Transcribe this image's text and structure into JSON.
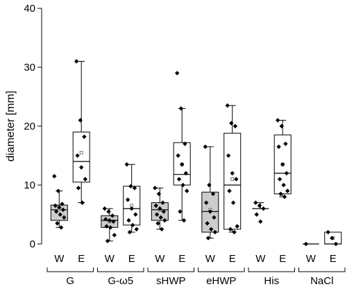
{
  "chart_data": {
    "type": "box",
    "title": "",
    "xlabel": "",
    "ylabel": "diameter [mm]",
    "ylim": [
      0,
      40
    ],
    "yticks": [
      0,
      10,
      20,
      30,
      40
    ],
    "grid": false,
    "groups": [
      {
        "name": "G",
        "boxes": [
          {
            "label": "W",
            "filled": true,
            "whisker_low": 2.8,
            "q1": 4.0,
            "median": 5.8,
            "q3": 6.6,
            "whisker_high": 9.0,
            "mean": 6.0,
            "points": [
              11.5,
              9.0,
              6.8,
              6.5,
              6.2,
              5.8,
              5.5,
              5.0,
              4.5,
              3.5,
              2.8
            ]
          },
          {
            "label": "E",
            "filled": false,
            "whisker_low": 7.0,
            "q1": 10.5,
            "median": 14.0,
            "q3": 19.0,
            "whisker_high": 31.0,
            "mean": 15.5,
            "points": [
              31.0,
              21.0,
              18.2,
              15.0,
              13.0,
              11.0,
              9.5,
              7.0
            ]
          }
        ]
      },
      {
        "name": "G-ω5",
        "boxes": [
          {
            "label": "W",
            "filled": true,
            "whisker_low": 0.5,
            "q1": 2.8,
            "median": 4.0,
            "q3": 4.8,
            "whisker_high": 6.0,
            "mean": 3.8,
            "points": [
              6.0,
              5.5,
              4.8,
              4.2,
              4.0,
              3.8,
              3.0,
              2.8,
              1.5,
              0.5
            ]
          },
          {
            "label": "E",
            "filled": false,
            "whisker_low": 2.0,
            "q1": 3.2,
            "median": 6.0,
            "q3": 9.8,
            "whisker_high": 13.5,
            "mean": 6.5,
            "points": [
              13.5,
              9.8,
              9.5,
              7.5,
              6.0,
              5.0,
              4.0,
              3.2,
              2.5,
              2.0
            ]
          }
        ]
      },
      {
        "name": "sHWP",
        "boxes": [
          {
            "label": "W",
            "filled": true,
            "whisker_low": 2.5,
            "q1": 4.0,
            "median": 5.8,
            "q3": 7.0,
            "whisker_high": 9.5,
            "mean": 5.8,
            "points": [
              9.5,
              8.5,
              7.0,
              6.5,
              6.0,
              5.5,
              5.0,
              4.5,
              4.0,
              3.5,
              2.5
            ]
          },
          {
            "label": "E",
            "filled": false,
            "whisker_low": 4.0,
            "q1": 10.0,
            "median": 11.8,
            "q3": 17.2,
            "whisker_high": 23.0,
            "mean": 13.5,
            "points": [
              29.0,
              23.0,
              17.0,
              15.0,
              13.5,
              12.0,
              11.0,
              10.0,
              9.0,
              5.5,
              4.0
            ]
          }
        ]
      },
      {
        "name": "eHWP",
        "boxes": [
          {
            "label": "W",
            "filled": true,
            "whisker_low": 1.0,
            "q1": 2.0,
            "median": 5.5,
            "q3": 8.8,
            "whisker_high": 16.5,
            "mean": 5.8,
            "points": [
              16.5,
              10.0,
              8.5,
              7.0,
              5.5,
              4.5,
              3.5,
              2.5,
              2.0,
              1.0
            ]
          },
          {
            "label": "E",
            "filled": false,
            "whisker_low": 2.0,
            "q1": 2.5,
            "median": 10.0,
            "q3": 18.8,
            "whisker_high": 23.5,
            "mean": 11.0,
            "points": [
              23.5,
              20.5,
              20.0,
              15.0,
              12.0,
              11.0,
              9.0,
              7.0,
              3.0,
              2.5,
              2.0
            ]
          }
        ]
      },
      {
        "name": "His",
        "boxes": [
          {
            "label": "W",
            "filled": false,
            "whisker_low": 6.0,
            "q1": 6.0,
            "median": 6.0,
            "q3": 6.0,
            "whisker_high": 7.0,
            "mean": 6.0,
            "points": [
              7.0,
              6.5,
              6.0,
              5.0,
              3.8
            ]
          },
          {
            "label": "E",
            "filled": false,
            "whisker_low": 8.0,
            "q1": 8.5,
            "median": 12.0,
            "q3": 18.5,
            "whisker_high": 21.0,
            "mean": 13.5,
            "points": [
              21.0,
              20.0,
              17.0,
              16.5,
              13.5,
              12.0,
              11.0,
              10.0,
              9.0,
              8.5,
              8.0
            ]
          }
        ]
      },
      {
        "name": "NaCl",
        "boxes": [
          {
            "label": "W",
            "filled": false,
            "whisker_low": 0.0,
            "q1": 0.0,
            "median": 0.0,
            "q3": 0.0,
            "whisker_high": 0.0,
            "mean": 0.0,
            "points": [
              0.0
            ]
          },
          {
            "label": "E",
            "filled": false,
            "whisker_low": 0.0,
            "q1": 0.0,
            "median": 0.0,
            "q3": 2.0,
            "whisker_high": 2.0,
            "mean": 1.0,
            "points": [
              2.0,
              1.0,
              0.0
            ]
          }
        ]
      }
    ]
  }
}
